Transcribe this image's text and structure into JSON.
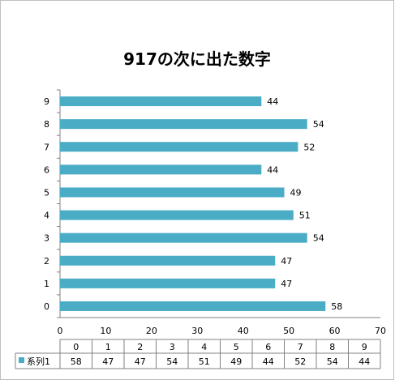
{
  "chart_data": {
    "type": "bar",
    "orientation": "horizontal",
    "title": "917の次に出た数字",
    "categories": [
      "0",
      "1",
      "2",
      "3",
      "4",
      "5",
      "6",
      "7",
      "8",
      "9"
    ],
    "series": [
      {
        "name": "系列1",
        "values": [
          58,
          47,
          47,
          54,
          51,
          49,
          44,
          52,
          54,
          44
        ],
        "color": "#4BACC6"
      }
    ],
    "x_ticks": [
      "0",
      "10",
      "20",
      "30",
      "40",
      "50",
      "60",
      "70"
    ],
    "xlim": [
      0,
      70
    ],
    "data_labels": true,
    "grid": false,
    "data_table": true
  }
}
